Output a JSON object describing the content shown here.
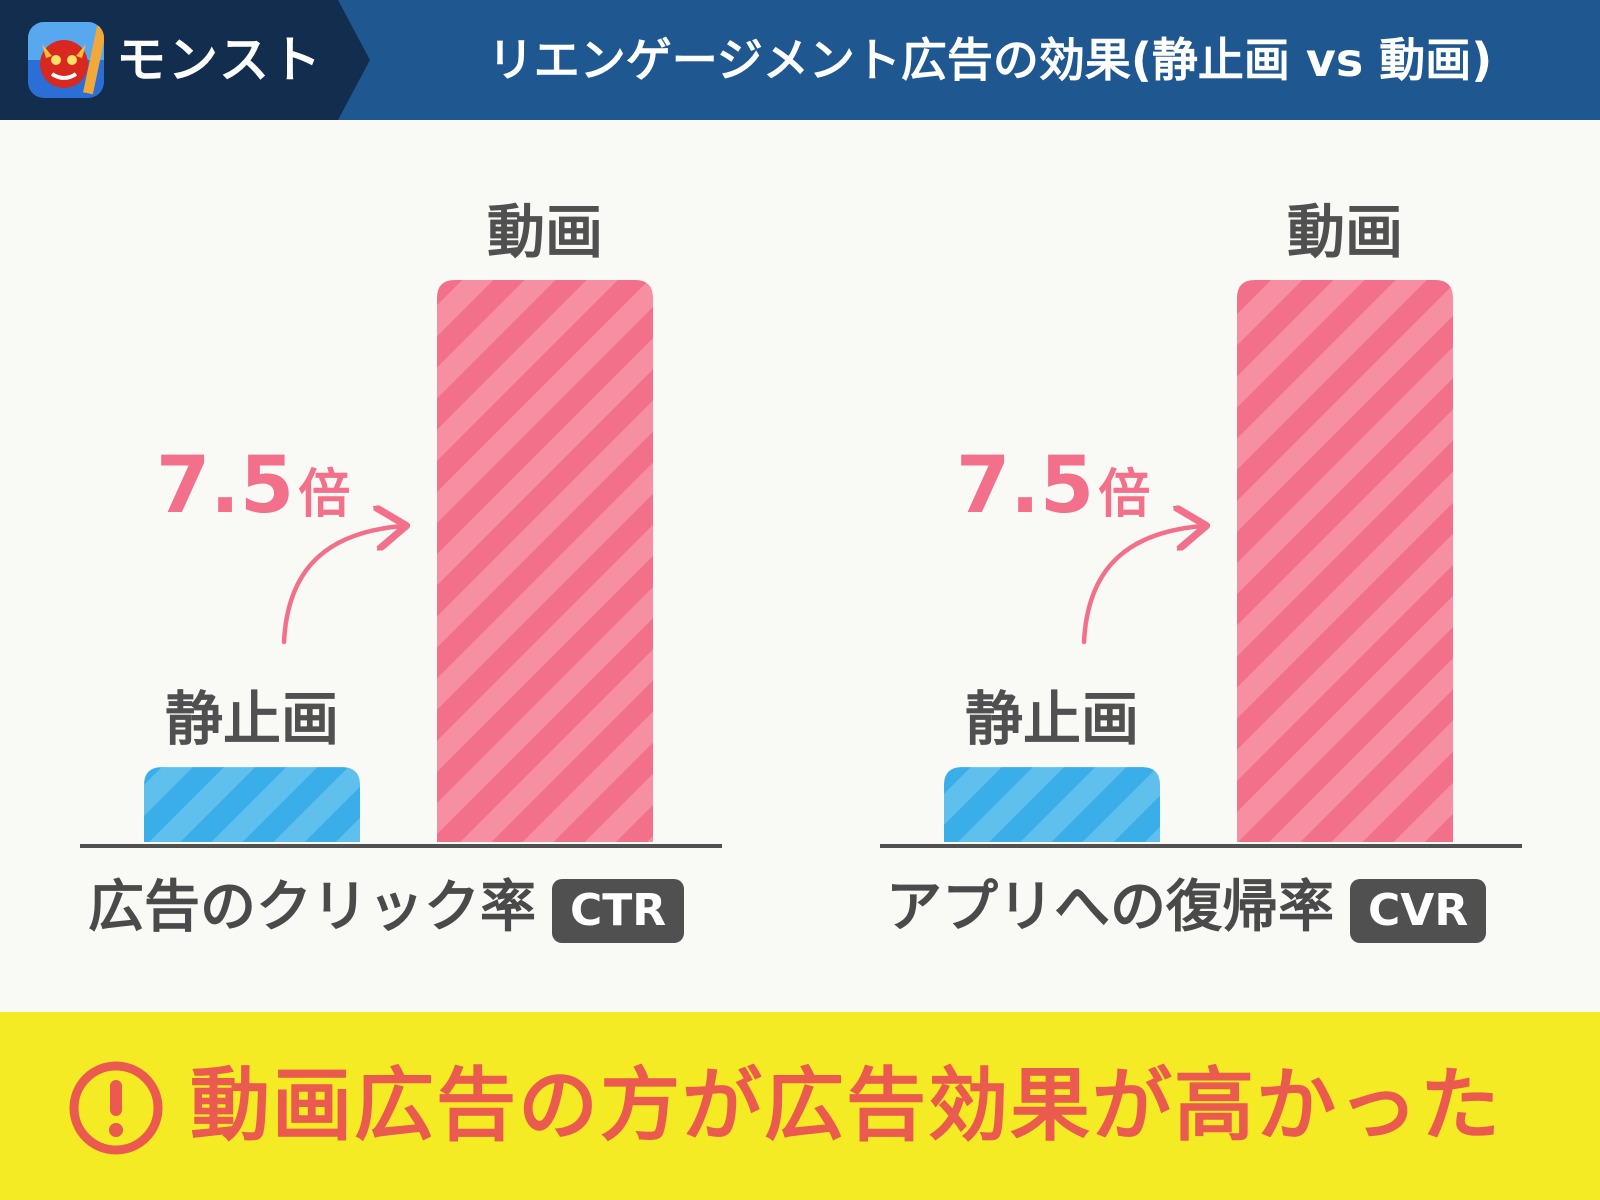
{
  "header": {
    "app_name": "モンスト",
    "title": "リエンゲージメント広告の効果(静止画 vs 動画)",
    "app_icon": "monster-strike-app-icon"
  },
  "colors": {
    "header_bg": "#1f5890",
    "header_dark": "#132d4e",
    "static_bar": "#3aaee9",
    "video_bar": "#f27089",
    "accent_text": "#f27089",
    "footer_bg": "#f4eb24",
    "footer_text": "#ea5a4e"
  },
  "chart_data": [
    {
      "type": "bar",
      "metric_label": "広告のクリック率",
      "metric_badge": "CTR",
      "categories": [
        "静止画",
        "動画"
      ],
      "values": [
        1,
        7.5
      ],
      "multiplier_number": "7.5",
      "multiplier_unit": "倍",
      "ylim": [
        0,
        7.5
      ],
      "grid": false
    },
    {
      "type": "bar",
      "metric_label": "アプリへの復帰率",
      "metric_badge": "CVR",
      "categories": [
        "静止画",
        "動画"
      ],
      "values": [
        1,
        7.5
      ],
      "multiplier_number": "7.5",
      "multiplier_unit": "倍",
      "ylim": [
        0,
        7.5
      ],
      "grid": false
    }
  ],
  "footer": {
    "message": "動画広告の方が広告効果が高かった",
    "icon": "exclamation-circle-icon"
  }
}
